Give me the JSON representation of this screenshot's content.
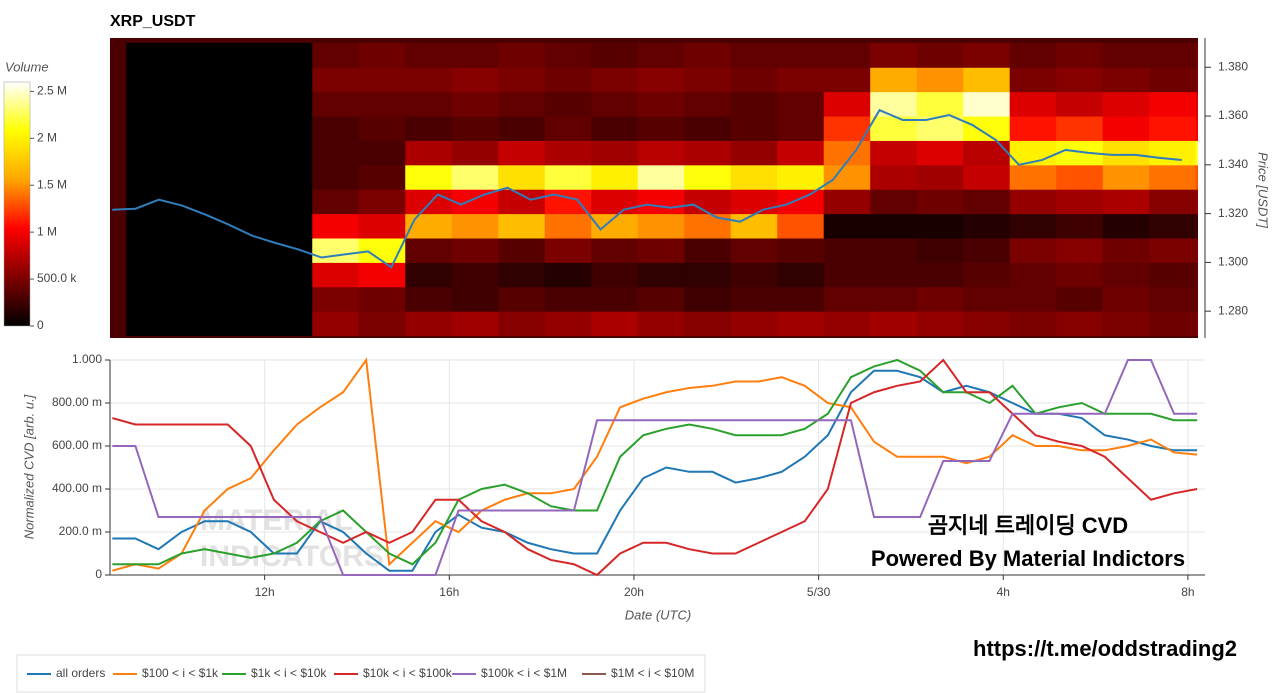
{
  "chart_data": [
    {
      "type": "heatmap",
      "title": "XRP_USDT",
      "x_bins": [
        9,
        10,
        11,
        12,
        13,
        14,
        15,
        16,
        17,
        18,
        19,
        20,
        21,
        22,
        23,
        24,
        25,
        26,
        27,
        28,
        29,
        30,
        31,
        32,
        33
      ],
      "y_bins": [
        1.27,
        1.28,
        1.29,
        1.3,
        1.31,
        1.32,
        1.33,
        1.34,
        1.35,
        1.36,
        1.37,
        1.38,
        1.39
      ],
      "z": [
        [
          0,
          0,
          0,
          0,
          600000,
          500000,
          600000,
          650000,
          550000,
          600000,
          700000,
          600000,
          550000,
          600000,
          650000,
          600000,
          650000,
          600000,
          550000,
          500000,
          550000,
          500000,
          450000,
          500000
        ],
        [
          0,
          0,
          0,
          0,
          500000,
          450000,
          300000,
          250000,
          350000,
          300000,
          300000,
          350000,
          250000,
          300000,
          300000,
          400000,
          400000,
          450000,
          400000,
          400000,
          350000,
          450000,
          400000,
          400000
        ],
        [
          0,
          0,
          0,
          0,
          900000,
          1000000,
          200000,
          250000,
          200000,
          150000,
          250000,
          200000,
          200000,
          250000,
          200000,
          300000,
          300000,
          300000,
          350000,
          400000,
          450000,
          400000,
          350000,
          400000
        ],
        [
          0,
          0,
          0,
          0,
          2300000,
          2100000,
          400000,
          450000,
          350000,
          500000,
          400000,
          450000,
          300000,
          400000,
          350000,
          300000,
          300000,
          250000,
          300000,
          500000,
          550000,
          450000,
          500000,
          500000
        ],
        [
          0,
          0,
          0,
          0,
          1000000,
          900000,
          1600000,
          1500000,
          1700000,
          1400000,
          1600000,
          1500000,
          1400000,
          1700000,
          1300000,
          100000,
          100000,
          100000,
          150000,
          200000,
          250000,
          150000,
          200000,
          250000
        ],
        [
          0,
          0,
          0,
          0,
          400000,
          500000,
          900000,
          1000000,
          800000,
          1100000,
          900000,
          1000000,
          800000,
          900000,
          1000000,
          600000,
          400000,
          450000,
          400000,
          600000,
          650000,
          700000,
          550000,
          600000
        ],
        [
          0,
          0,
          0,
          0,
          300000,
          350000,
          2100000,
          2300000,
          1900000,
          2200000,
          2000000,
          2400000,
          2100000,
          1900000,
          2000000,
          1500000,
          700000,
          650000,
          800000,
          1400000,
          1300000,
          1500000,
          1400000,
          1300000
        ],
        [
          0,
          0,
          0,
          0,
          300000,
          300000,
          700000,
          600000,
          800000,
          700000,
          650000,
          750000,
          700000,
          600000,
          800000,
          1400000,
          800000,
          900000,
          750000,
          2000000,
          2100000,
          1900000,
          2000000,
          2200000
        ],
        [
          0,
          0,
          0,
          0,
          300000,
          350000,
          300000,
          350000,
          300000,
          400000,
          300000,
          350000,
          300000,
          350000,
          400000,
          1200000,
          2200000,
          2300000,
          2100000,
          1100000,
          1200000,
          1000000,
          1100000,
          1000000
        ],
        [
          0,
          0,
          0,
          0,
          400000,
          400000,
          400000,
          450000,
          400000,
          350000,
          400000,
          450000,
          400000,
          350000,
          400000,
          900000,
          2400000,
          2200000,
          2500000,
          900000,
          800000,
          900000,
          1000000,
          900000
        ],
        [
          0,
          0,
          0,
          0,
          500000,
          500000,
          500000,
          550000,
          500000,
          450000,
          500000,
          550000,
          500000,
          450000,
          500000,
          500000,
          1600000,
          1500000,
          1700000,
          500000,
          550000,
          500000,
          450000,
          500000
        ],
        [
          0,
          0,
          0,
          0,
          400000,
          450000,
          400000,
          400000,
          450000,
          400000,
          350000,
          400000,
          450000,
          400000,
          400000,
          400000,
          500000,
          450000,
          500000,
          400000,
          450000,
          400000,
          400000,
          450000
        ]
      ],
      "colorscale": [
        "#000000",
        "#800000",
        "#ff0000",
        "#ffa500",
        "#ffff00",
        "#ffffff"
      ],
      "clim": [
        0,
        2600000
      ],
      "colorbar_title": "Volume",
      "colorbar_ticks": [
        0,
        {
          "value": 500000,
          "label": "500.0 k"
        },
        {
          "value": 1000000,
          "label": "1 M"
        },
        {
          "value": 1500000,
          "label": "1.5 M"
        },
        {
          "value": 2000000,
          "label": "2 M"
        },
        {
          "value": 2500000,
          "label": "2.5 M"
        }
      ],
      "background": "#4a0000",
      "xlim": [
        8.65,
        32.05
      ],
      "ylim": [
        1.269,
        1.392
      ],
      "yticks": [
        {
          "value": 1.28,
          "label": "1.280"
        },
        {
          "value": 1.3,
          "label": "1.300"
        },
        {
          "value": 1.32,
          "label": "1.320"
        },
        {
          "value": 1.34,
          "label": "1.340"
        },
        {
          "value": 1.36,
          "label": "1.360"
        },
        {
          "value": 1.38,
          "label": "1.380"
        }
      ],
      "y_label": "Price [USDT]",
      "price": {
        "color": "#2f7dbb",
        "x": [
          8.7,
          9.2,
          9.7,
          10.2,
          10.7,
          11.2,
          11.7,
          12.2,
          12.7,
          13.2,
          13.7,
          14.2,
          14.7,
          15.2,
          15.7,
          16.2,
          16.7,
          17.2,
          17.7,
          18.2,
          18.7,
          19.2,
          19.7,
          20.2,
          20.7,
          21.2,
          21.7,
          22.2,
          22.7,
          23.2,
          23.7,
          24.2,
          24.7,
          25.2,
          25.7,
          26.2,
          26.7,
          27.2,
          27.7,
          28.2,
          28.7,
          29.2,
          29.7,
          30.2,
          30.7,
          31.2,
          31.7
        ],
        "values": [
          1.3216,
          1.322,
          1.3257,
          1.3233,
          1.3196,
          1.3155,
          1.311,
          1.308,
          1.3053,
          1.302,
          1.3033,
          1.3045,
          1.298,
          1.3176,
          1.3278,
          1.3237,
          1.3278,
          1.3306,
          1.3257,
          1.3278,
          1.3257,
          1.3135,
          1.3216,
          1.3237,
          1.3224,
          1.3237,
          1.3184,
          1.3167,
          1.3216,
          1.3237,
          1.3278,
          1.3339,
          1.3461,
          1.3624,
          1.3584,
          1.3584,
          1.3604,
          1.3563,
          1.3502,
          1.34,
          1.342,
          1.3461,
          1.3449,
          1.3441,
          1.3441,
          1.3429,
          1.342
        ]
      }
    },
    {
      "type": "line",
      "x": [
        8.7,
        9.2,
        9.7,
        10.2,
        10.7,
        11.2,
        11.7,
        12.2,
        12.7,
        13.2,
        13.7,
        14.2,
        14.7,
        15.2,
        15.7,
        16.2,
        16.7,
        17.2,
        17.7,
        18.2,
        18.7,
        19.2,
        19.7,
        20.2,
        20.7,
        21.2,
        21.7,
        22.2,
        22.7,
        23.2,
        23.7,
        24.2,
        24.7,
        25.2,
        25.7,
        26.2,
        26.7,
        27.2,
        27.7,
        28.2,
        28.7,
        29.2,
        29.7,
        30.2,
        30.7,
        31.2,
        31.7,
        32.2
      ],
      "series": [
        {
          "name": "all orders",
          "color": "#1f77b4",
          "values": [
            0.17,
            0.17,
            0.12,
            0.2,
            0.25,
            0.25,
            0.2,
            0.1,
            0.1,
            0.25,
            0.2,
            0.1,
            0.02,
            0.02,
            0.2,
            0.28,
            0.22,
            0.2,
            0.15,
            0.12,
            0.1,
            0.1,
            0.3,
            0.45,
            0.5,
            0.48,
            0.48,
            0.43,
            0.45,
            0.48,
            0.55,
            0.65,
            0.85,
            0.95,
            0.95,
            0.92,
            0.85,
            0.88,
            0.85,
            0.8,
            0.75,
            0.75,
            0.73,
            0.65,
            0.63,
            0.6,
            0.58,
            0.58
          ]
        },
        {
          "name": "$100 < i < $1k",
          "color": "#ff7f0e",
          "values": [
            0.02,
            0.05,
            0.03,
            0.1,
            0.3,
            0.4,
            0.45,
            0.58,
            0.7,
            0.78,
            0.85,
            1.0,
            0.05,
            0.15,
            0.25,
            0.2,
            0.3,
            0.35,
            0.38,
            0.38,
            0.4,
            0.55,
            0.78,
            0.82,
            0.85,
            0.87,
            0.88,
            0.9,
            0.9,
            0.92,
            0.88,
            0.8,
            0.78,
            0.62,
            0.55,
            0.55,
            0.55,
            0.52,
            0.55,
            0.65,
            0.6,
            0.6,
            0.58,
            0.58,
            0.6,
            0.63,
            0.57,
            0.56
          ]
        },
        {
          "name": "$1k < i < $10k",
          "color": "#2ca02c",
          "values": [
            0.05,
            0.05,
            0.05,
            0.1,
            0.12,
            0.1,
            0.08,
            0.1,
            0.15,
            0.25,
            0.3,
            0.2,
            0.1,
            0.05,
            0.15,
            0.35,
            0.4,
            0.42,
            0.38,
            0.32,
            0.3,
            0.3,
            0.55,
            0.65,
            0.68,
            0.7,
            0.68,
            0.65,
            0.65,
            0.65,
            0.68,
            0.75,
            0.92,
            0.97,
            1.0,
            0.95,
            0.85,
            0.85,
            0.8,
            0.88,
            0.75,
            0.78,
            0.8,
            0.75,
            0.75,
            0.75,
            0.72,
            0.72
          ]
        },
        {
          "name": "$10k < i < $100k",
          "color": "#d62728",
          "values": [
            0.73,
            0.7,
            0.7,
            0.7,
            0.7,
            0.7,
            0.6,
            0.35,
            0.25,
            0.2,
            0.15,
            0.2,
            0.15,
            0.2,
            0.35,
            0.35,
            0.25,
            0.2,
            0.12,
            0.07,
            0.05,
            0.0,
            0.1,
            0.15,
            0.15,
            0.12,
            0.1,
            0.1,
            0.15,
            0.2,
            0.25,
            0.4,
            0.8,
            0.85,
            0.88,
            0.9,
            1.0,
            0.85,
            0.85,
            0.75,
            0.65,
            0.62,
            0.6,
            0.55,
            0.45,
            0.35,
            0.38,
            0.4
          ]
        },
        {
          "name": "$100k < i < $1M",
          "color": "#9467bd",
          "values": [
            0.6,
            0.6,
            0.27,
            0.27,
            0.27,
            0.27,
            0.27,
            0.27,
            0.27,
            0.27,
            0,
            0,
            0,
            0,
            0,
            0.3,
            0.3,
            0.3,
            0.3,
            0.3,
            0.3,
            0.72,
            0.72,
            0.72,
            0.72,
            0.72,
            0.72,
            0.72,
            0.72,
            0.72,
            0.72,
            0.72,
            0.72,
            0.27,
            0.27,
            0.27,
            0.53,
            0.53,
            0.53,
            0.75,
            0.75,
            0.75,
            0.75,
            0.75,
            1.0,
            1.0,
            0.75,
            0.75
          ]
        },
        {
          "name": "$1M < i < $10M",
          "color": "#8c564b",
          "values": [
            null,
            null,
            null,
            null,
            null,
            null,
            null,
            null,
            null,
            null,
            null,
            null,
            null,
            null,
            null,
            null,
            null,
            null,
            null,
            null,
            null,
            null,
            null,
            null,
            null,
            null,
            null,
            null,
            null,
            null,
            null,
            null,
            null,
            null,
            null,
            null,
            null,
            null,
            null,
            null,
            null,
            null,
            null,
            null,
            null,
            null,
            null,
            null
          ]
        }
      ],
      "xlim": [
        8.65,
        32.37
      ],
      "ylim": [
        0,
        1
      ],
      "xticks": [
        {
          "value": 12,
          "label": "12h"
        },
        {
          "value": 16,
          "label": "16h"
        },
        {
          "value": 20,
          "label": "20h"
        },
        {
          "value": 24,
          "label": "5/30"
        },
        {
          "value": 28,
          "label": "4h"
        },
        {
          "value": 32,
          "label": "8h"
        }
      ],
      "yticks": [
        0,
        {
          "value": 0.2,
          "label": "200.0 m"
        },
        {
          "value": 0.4,
          "label": "400.00 m"
        },
        {
          "value": 0.6,
          "label": "600.00 m"
        },
        {
          "value": 0.8,
          "label": "800.00 m"
        },
        {
          "value": 1,
          "label": "1.000"
        }
      ],
      "x_label": "Date (UTC)",
      "y_label": "Normalized CVD [arb. u.]",
      "grid": true,
      "legend": "bottom-left",
      "watermark": [
        "MATERIAL",
        "INDICATORS"
      ],
      "annotations": [
        "곰지네 트레이딩 CVD",
        "Powered By Material Indictors",
        "https://t.me/oddstrading2"
      ]
    }
  ]
}
